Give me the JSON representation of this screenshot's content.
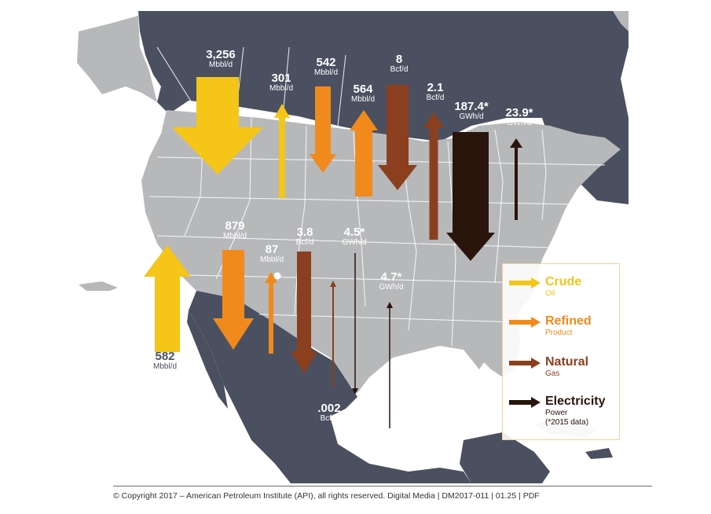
{
  "flows": [
    {
      "id": "crude-canada-us",
      "value": "3,256",
      "unit": "Mbbl/d",
      "type": "crude",
      "direction": "south"
    },
    {
      "id": "crude-us-canada",
      "value": "301",
      "unit": "Mbbl/d",
      "type": "crude",
      "direction": "north"
    },
    {
      "id": "refined-canada-us",
      "value": "542",
      "unit": "Mbbl/d",
      "type": "refined",
      "direction": "south"
    },
    {
      "id": "refined-us-canada",
      "value": "564",
      "unit": "Mbbl/d",
      "type": "refined",
      "direction": "north"
    },
    {
      "id": "gas-canada-us",
      "value": "8",
      "unit": "Bcf/d",
      "type": "natural",
      "direction": "south"
    },
    {
      "id": "gas-us-canada",
      "value": "2.1",
      "unit": "Bcf/d",
      "type": "natural",
      "direction": "north"
    },
    {
      "id": "elec-canada-us",
      "value": "187.4*",
      "unit": "GWh/d",
      "type": "electricity",
      "direction": "south"
    },
    {
      "id": "elec-us-canada",
      "value": "23.9*",
      "unit": "GWh/d",
      "type": "electricity",
      "direction": "north"
    },
    {
      "id": "crude-mexico-us",
      "value": "582",
      "unit": "Mbbl/d",
      "type": "crude",
      "direction": "north"
    },
    {
      "id": "refined-us-mexico",
      "value": "879",
      "unit": "Mbbl/d",
      "type": "refined",
      "direction": "south"
    },
    {
      "id": "refined-mexico-us",
      "value": "87",
      "unit": "Mbbl/d",
      "type": "refined",
      "direction": "north"
    },
    {
      "id": "gas-us-mexico",
      "value": "3.8",
      "unit": "Bcf/d",
      "type": "natural",
      "direction": "south"
    },
    {
      "id": "gas-mexico-us",
      "value": ".002",
      "unit": "Bcf/d",
      "type": "natural",
      "direction": "north"
    },
    {
      "id": "elec-us-mexico",
      "value": "4.5*",
      "unit": "GWh/d",
      "type": "electricity",
      "direction": "south"
    },
    {
      "id": "elec-mexico-us",
      "value": "4.7*",
      "unit": "GWh/d",
      "type": "electricity",
      "direction": "north"
    }
  ],
  "legend": [
    {
      "title": "Crude",
      "sub": "Oil",
      "color": "#f5c518"
    },
    {
      "title": "Refined",
      "sub": "Product",
      "color": "#f08a1c"
    },
    {
      "title": "Natural",
      "sub": "Gas",
      "color": "#8c3f1e"
    },
    {
      "title": "Electricity",
      "sub": "Power",
      "note": "(*2015 data)",
      "color": "#2a150c"
    }
  ],
  "colors": {
    "ocean": "#ffffff",
    "foreign_land": "#4a5060",
    "us_land": "#b7b8ba",
    "state_lines": "#ffffff",
    "crude": "#f5c518",
    "refined": "#f08a1c",
    "natural": "#8c3f1e",
    "electricity": "#2a150c"
  },
  "footer": "© Copyright 2017 – American Petroleum Institute (API), all rights reserved. Digital Media | DM2017-011 | 01.25 | PDF"
}
